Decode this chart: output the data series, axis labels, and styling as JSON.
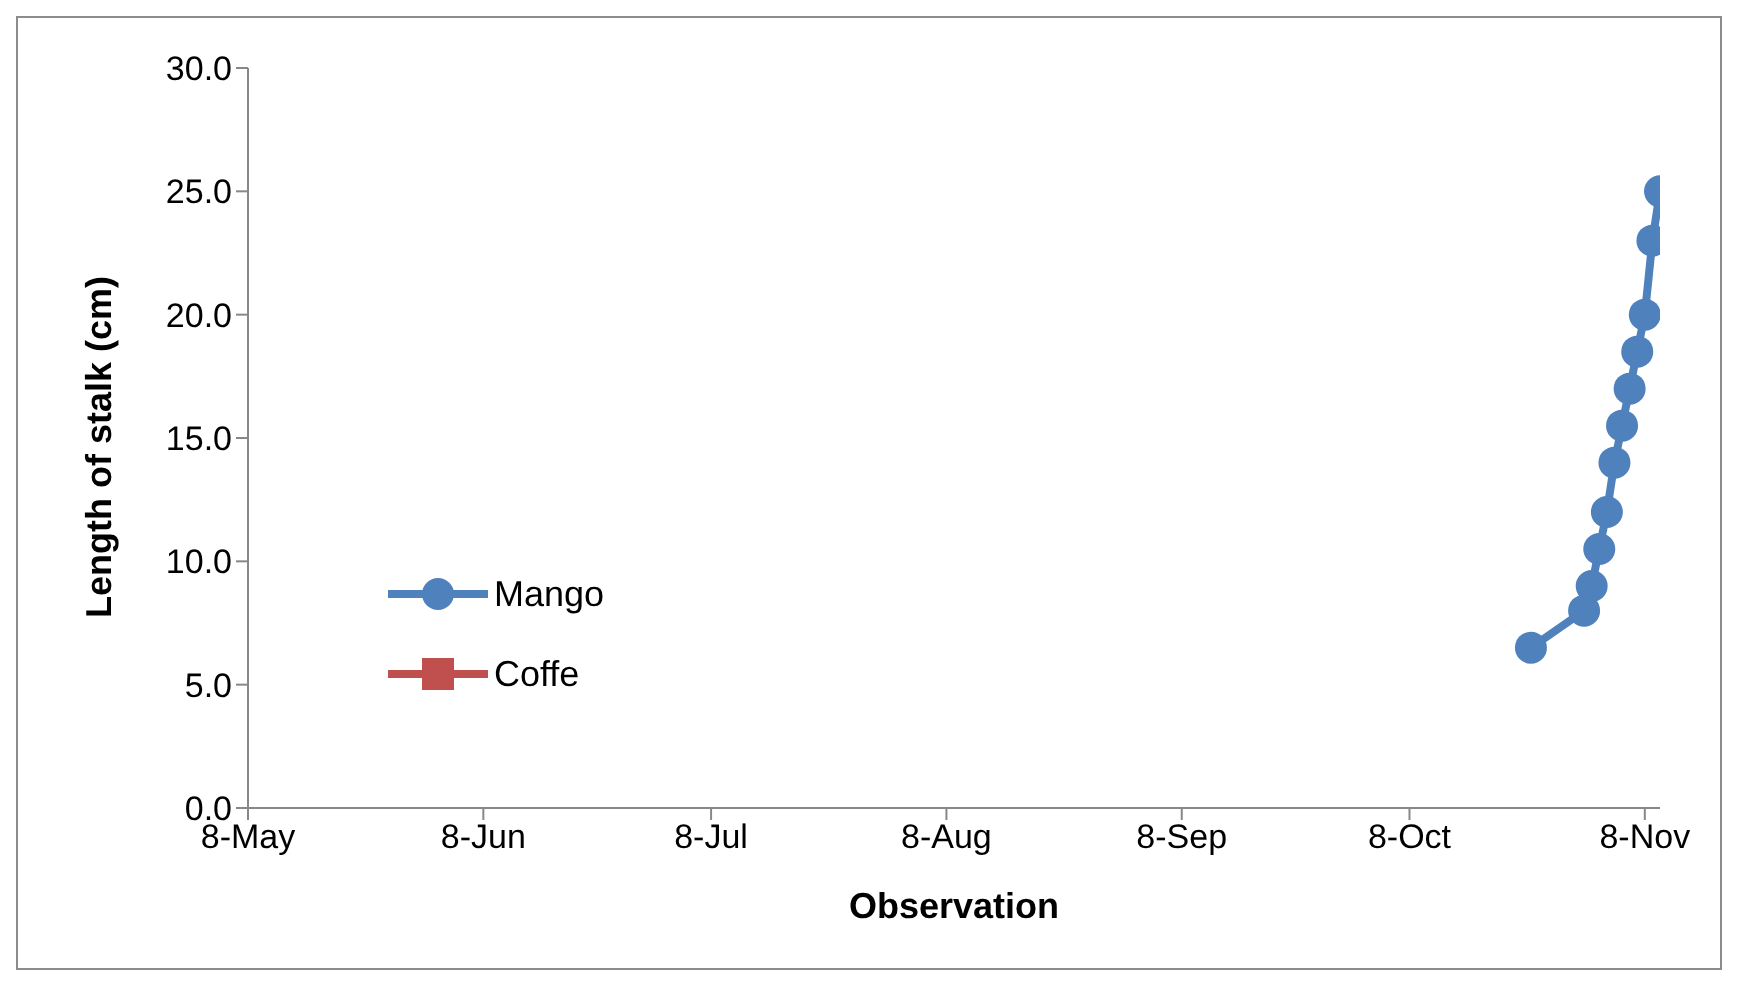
{
  "chart_data": {
    "type": "line",
    "xlabel": "Observation",
    "ylabel": "Length of stalk (cm)",
    "x": [
      "--10-24",
      "--10-31",
      "--11-01",
      "--11-02",
      "--11-03",
      "--11-04",
      "--11-05",
      "--11-06",
      "--11-07",
      "--11-08",
      "--11-09",
      "--11-10"
    ],
    "series": [
      {
        "name": "Mango",
        "color": "#4f81bd",
        "marker": "circle",
        "values": [
          6.5,
          8.0,
          9.0,
          10.5,
          12.0,
          14.0,
          15.5,
          17.0,
          18.5,
          20.0,
          23.0,
          25.0
        ]
      },
      {
        "name": "Coffe",
        "color": "#c0504d",
        "marker": "square",
        "values": [
          null,
          null,
          null,
          null,
          null,
          null,
          null,
          null,
          null,
          null,
          null,
          null
        ]
      }
    ],
    "xlim": [
      "--05-08",
      "--11-10"
    ],
    "xticks": [
      {
        "value": "--05-08",
        "label": "8-May"
      },
      {
        "value": "--06-08",
        "label": "8-Jun"
      },
      {
        "value": "--07-08",
        "label": "8-Jul"
      },
      {
        "value": "--08-08",
        "label": "8-Aug"
      },
      {
        "value": "--09-08",
        "label": "8-Sep"
      },
      {
        "value": "--10-08",
        "label": "8-Oct"
      },
      {
        "value": "--11-08",
        "label": "8-Nov"
      }
    ],
    "ylim": [
      0,
      30
    ],
    "yticks": [
      {
        "value": 0,
        "label": "0.0"
      },
      {
        "value": 5,
        "label": "5.0"
      },
      {
        "value": 10,
        "label": "10.0"
      },
      {
        "value": 15,
        "label": "15.0"
      },
      {
        "value": 20,
        "label": "20.0"
      },
      {
        "value": 25,
        "label": "25.0"
      },
      {
        "value": 30,
        "label": "30.0"
      }
    ],
    "grid": false,
    "legend": "left",
    "line_style": "solid"
  }
}
